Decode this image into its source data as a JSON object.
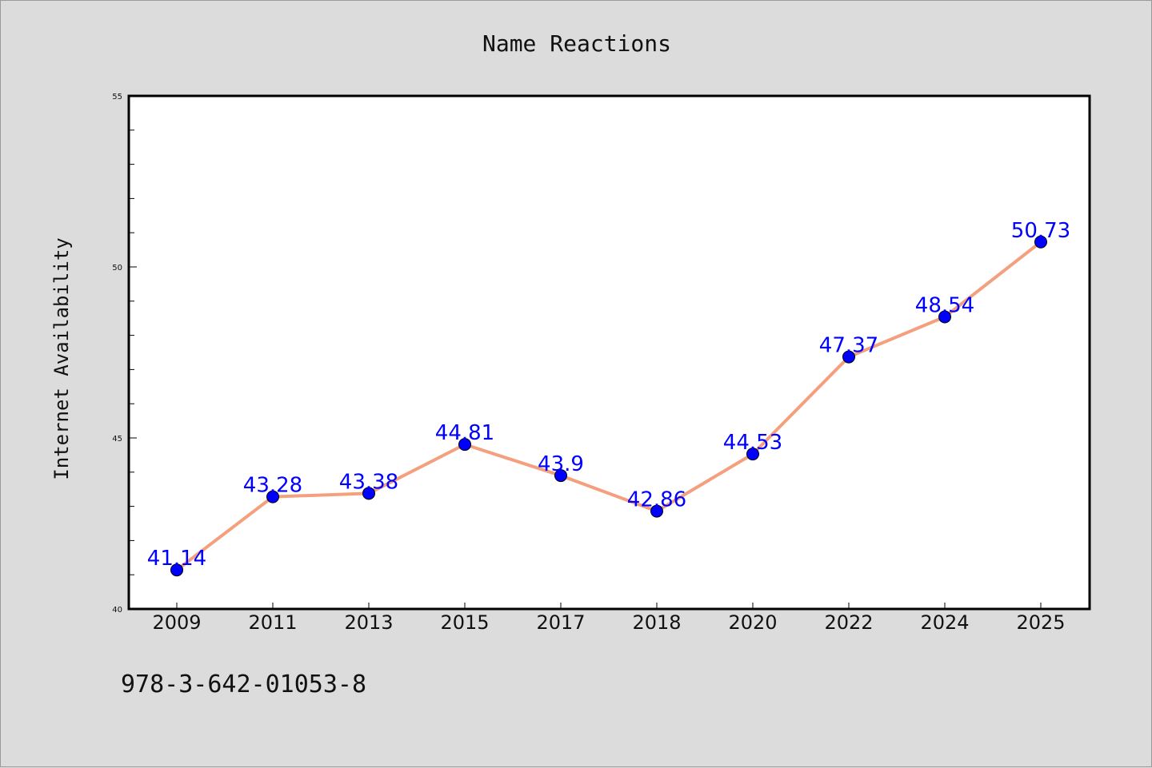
{
  "chart_data": {
    "type": "line",
    "title": "Name Reactions",
    "xlabel": "",
    "ylabel": "Internet Availability",
    "categories": [
      "2009",
      "2011",
      "2013",
      "2015",
      "2017",
      "2018",
      "2020",
      "2022",
      "2024",
      "2025"
    ],
    "series": [
      {
        "values": [
          41.14,
          43.28,
          43.38,
          44.81,
          43.9,
          42.86,
          44.53,
          47.37,
          48.54,
          50.73
        ],
        "labels": [
          "41.14",
          "43.28",
          "43.38",
          "44.81",
          "43.9",
          "42.86",
          "44.53",
          "47.37",
          "48.54",
          "50.73"
        ]
      }
    ],
    "ylim": [
      40,
      55
    ],
    "yticks": [
      "40",
      "45",
      "50",
      "55"
    ],
    "y_minor_step": 1,
    "grid": false,
    "legend": "none",
    "line_color": "#f4a07e",
    "marker_color": "#0000ff",
    "label_color": "#0000ff"
  },
  "footnote": "978-3-642-01053-8"
}
